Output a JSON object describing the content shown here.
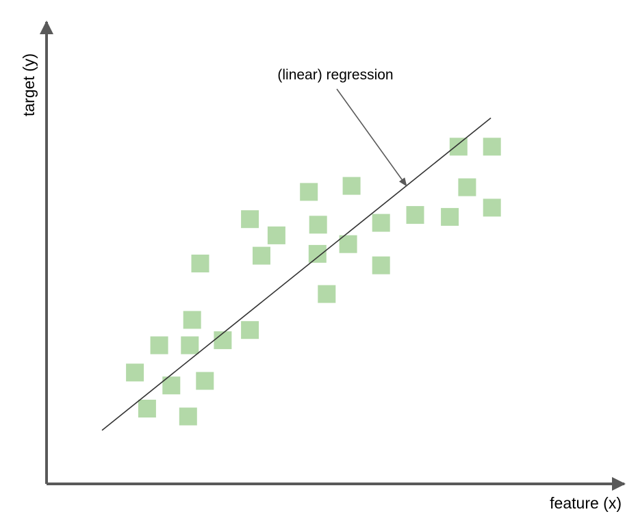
{
  "chart_data": {
    "type": "scatter",
    "xlabel": "feature (x)",
    "ylabel": "target (y)",
    "xlim": [
      0,
      100
    ],
    "ylim": [
      0,
      100
    ],
    "grid": false,
    "ticks": false,
    "point_shape": "square",
    "point_color": "#b3d9a8",
    "axis_color": "#595959",
    "series": [
      {
        "points": [
          [
            15.3,
            24.1
          ],
          [
            19.5,
            30.0
          ],
          [
            17.4,
            16.3
          ],
          [
            21.6,
            21.3
          ],
          [
            24.5,
            14.6
          ],
          [
            24.8,
            30.0
          ],
          [
            25.2,
            35.5
          ],
          [
            27.4,
            22.3
          ],
          [
            26.6,
            47.7
          ],
          [
            30.5,
            31.1
          ],
          [
            35.2,
            33.3
          ],
          [
            35.2,
            57.3
          ],
          [
            37.2,
            49.4
          ],
          [
            39.8,
            53.8
          ],
          [
            45.4,
            63.2
          ],
          [
            47.0,
            56.1
          ],
          [
            46.9,
            49.8
          ],
          [
            48.5,
            41.1
          ],
          [
            52.2,
            51.9
          ],
          [
            52.8,
            64.5
          ],
          [
            57.9,
            56.5
          ],
          [
            57.9,
            47.3
          ],
          [
            63.8,
            58.2
          ],
          [
            69.8,
            57.8
          ],
          [
            71.3,
            73.0
          ],
          [
            72.8,
            64.2
          ],
          [
            77.1,
            73.0
          ],
          [
            77.1,
            59.8
          ]
        ]
      }
    ],
    "regression_line": {
      "label": "(linear) regression",
      "from": [
        9.6,
        11.6
      ],
      "to": [
        76.9,
        79.2
      ]
    },
    "annotations": [
      {
        "text": "(linear) regression",
        "arrow_to": [
          62.3,
          64.5
        ]
      }
    ]
  }
}
